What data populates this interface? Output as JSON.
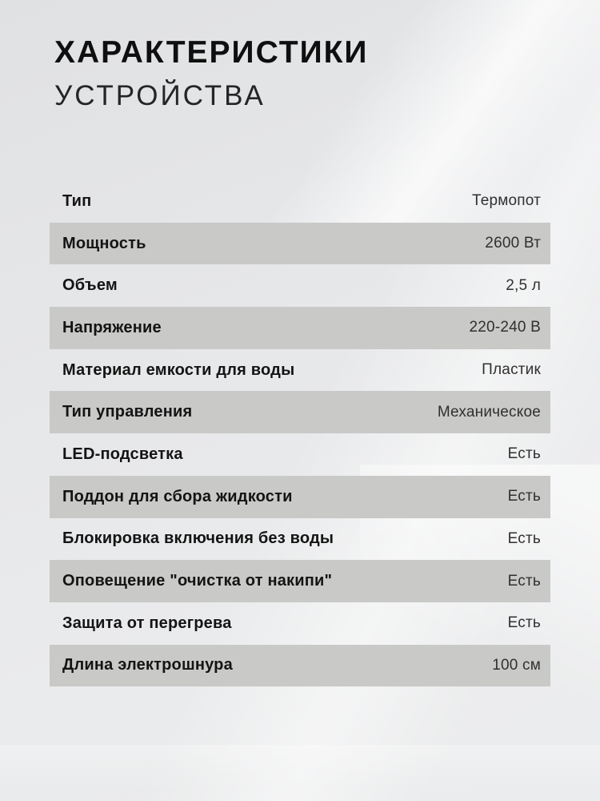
{
  "header": {
    "title_line1": "ХАРАКТЕРИСТИКИ",
    "title_line2": "УСТРОЙСТВА"
  },
  "colors": {
    "row_highlight": "#c9c9c8",
    "label_text": "#141414",
    "value_text": "#303030",
    "title_text": "#0f0f0f",
    "background_base": "#e6e7e9"
  },
  "spec_table": {
    "rows": [
      {
        "label": "Тип",
        "value": "Термопот",
        "highlighted": false
      },
      {
        "label": "Мощность",
        "value": "2600 Вт",
        "highlighted": true
      },
      {
        "label": "Объем",
        "value": "2,5 л",
        "highlighted": false
      },
      {
        "label": "Напряжение",
        "value": "220-240 В",
        "highlighted": true
      },
      {
        "label": "Материал емкости для воды",
        "value": "Пластик",
        "highlighted": false
      },
      {
        "label": "Тип управления",
        "value": "Механическое",
        "highlighted": true
      },
      {
        "label": "LED-подсветка",
        "value": "Есть",
        "highlighted": false
      },
      {
        "label": "Поддон для сбора жидкости",
        "value": "Есть",
        "highlighted": true
      },
      {
        "label": "Блокировка включения без воды",
        "value": "Есть",
        "highlighted": false
      },
      {
        "label": "Оповещение \"очистка от накипи\"",
        "value": "Есть",
        "highlighted": true
      },
      {
        "label": "Защита от перегрева",
        "value": "Есть",
        "highlighted": false
      },
      {
        "label": "Длина электрошнура",
        "value": "100 см",
        "highlighted": true
      }
    ]
  }
}
